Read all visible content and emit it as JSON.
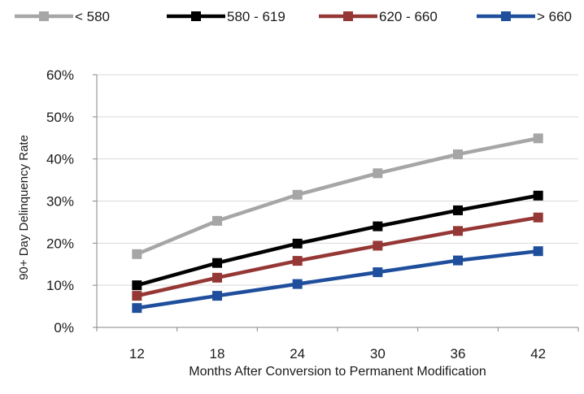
{
  "chart_data": {
    "type": "line",
    "title": "",
    "xlabel": "Months After Conversion to Permanent Modification",
    "ylabel": "90+ Day Delinquency Rate",
    "x": [
      12,
      18,
      24,
      30,
      36,
      42
    ],
    "x_tick_labels": [
      "12",
      "18",
      "24",
      "30",
      "36",
      "42"
    ],
    "ylim": [
      0,
      0.6
    ],
    "y_ticks": [
      0,
      0.1,
      0.2,
      0.3,
      0.4,
      0.5,
      0.6
    ],
    "y_tick_labels": [
      "0%",
      "10%",
      "20%",
      "30%",
      "40%",
      "50%",
      "60%"
    ],
    "grid": true,
    "legend_position": "top",
    "marker": "square",
    "series": [
      {
        "name": "< 580",
        "color": "#a6a6a6",
        "values": [
          0.174,
          0.253,
          0.315,
          0.366,
          0.411,
          0.449
        ]
      },
      {
        "name": "580 - 619",
        "color": "#000000",
        "values": [
          0.1,
          0.153,
          0.199,
          0.24,
          0.278,
          0.313
        ]
      },
      {
        "name": "620 - 660",
        "color": "#953735",
        "values": [
          0.075,
          0.118,
          0.158,
          0.194,
          0.229,
          0.261
        ]
      },
      {
        "name": "> 660",
        "color": "#1f4e9c",
        "values": [
          0.046,
          0.075,
          0.103,
          0.131,
          0.159,
          0.181
        ]
      }
    ]
  }
}
